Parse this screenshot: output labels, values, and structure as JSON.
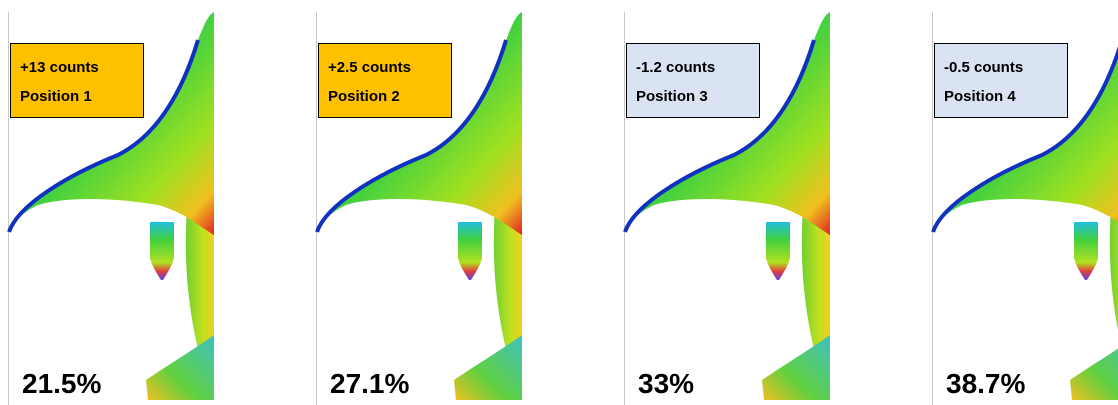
{
  "panels": [
    {
      "delta": "+13 counts",
      "position": "Position 1",
      "share": "21.5%",
      "color": "#ffc000"
    },
    {
      "delta": "+2.5 counts",
      "position": "Position 2",
      "share": "27.1%",
      "color": "#ffc000"
    },
    {
      "delta": "-1.2 counts",
      "position": "Position 3",
      "share": "33%",
      "color": "#dae3f3"
    },
    {
      "delta": "-0.5 counts",
      "position": "Position 4",
      "share": "38.7%",
      "color": "#dae3f3"
    }
  ]
}
